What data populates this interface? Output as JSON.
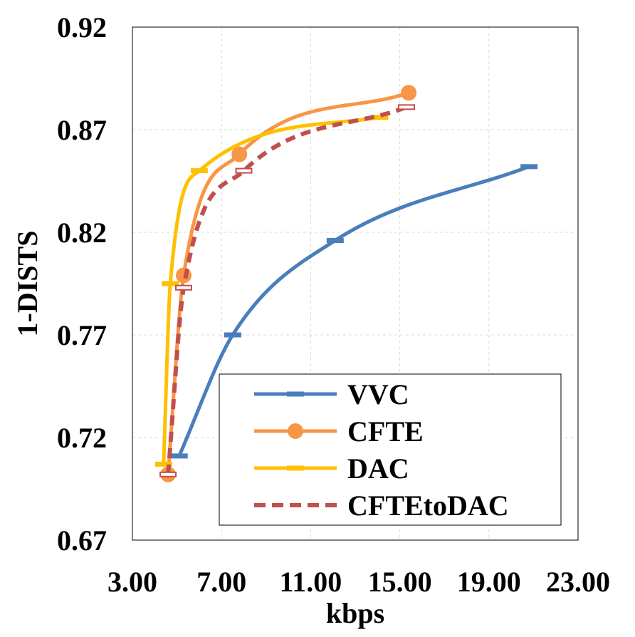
{
  "chart_data": {
    "type": "line",
    "title": "",
    "xlabel": "kbps",
    "ylabel": "1-DISTS",
    "xlim": [
      3.0,
      23.0
    ],
    "ylim": [
      0.67,
      0.92
    ],
    "x_ticks": [
      "3.00",
      "7.00",
      "11.00",
      "15.00",
      "19.00",
      "23.00"
    ],
    "y_ticks": [
      "0.67",
      "0.72",
      "0.77",
      "0.82",
      "0.87",
      "0.92"
    ],
    "grid": true,
    "legend_position": "bottom-right",
    "series": [
      {
        "name": "VVC",
        "color": "#4a7ebb",
        "marker": "dash",
        "line": "solid",
        "points": [
          [
            5.1,
            0.711
          ],
          [
            7.5,
            0.77
          ],
          [
            12.1,
            0.816
          ],
          [
            20.8,
            0.852
          ]
        ]
      },
      {
        "name": "CFTE",
        "color": "#f79646",
        "marker": "circle",
        "line": "solid",
        "points": [
          [
            4.6,
            0.702
          ],
          [
            5.3,
            0.799
          ],
          [
            7.8,
            0.858
          ],
          [
            15.4,
            0.888
          ]
        ]
      },
      {
        "name": "DAC",
        "color": "#ffc000",
        "marker": "dash",
        "line": "solid",
        "points": [
          [
            4.4,
            0.707
          ],
          [
            4.7,
            0.795
          ],
          [
            6.0,
            0.85
          ],
          [
            14.1,
            0.876
          ]
        ]
      },
      {
        "name": "CFTEtoDAC",
        "color": "#c0504d",
        "marker": "dash-outline",
        "line": "dashed",
        "points": [
          [
            4.6,
            0.702
          ],
          [
            5.3,
            0.793
          ],
          [
            8.0,
            0.85
          ],
          [
            15.3,
            0.881
          ]
        ]
      }
    ]
  }
}
